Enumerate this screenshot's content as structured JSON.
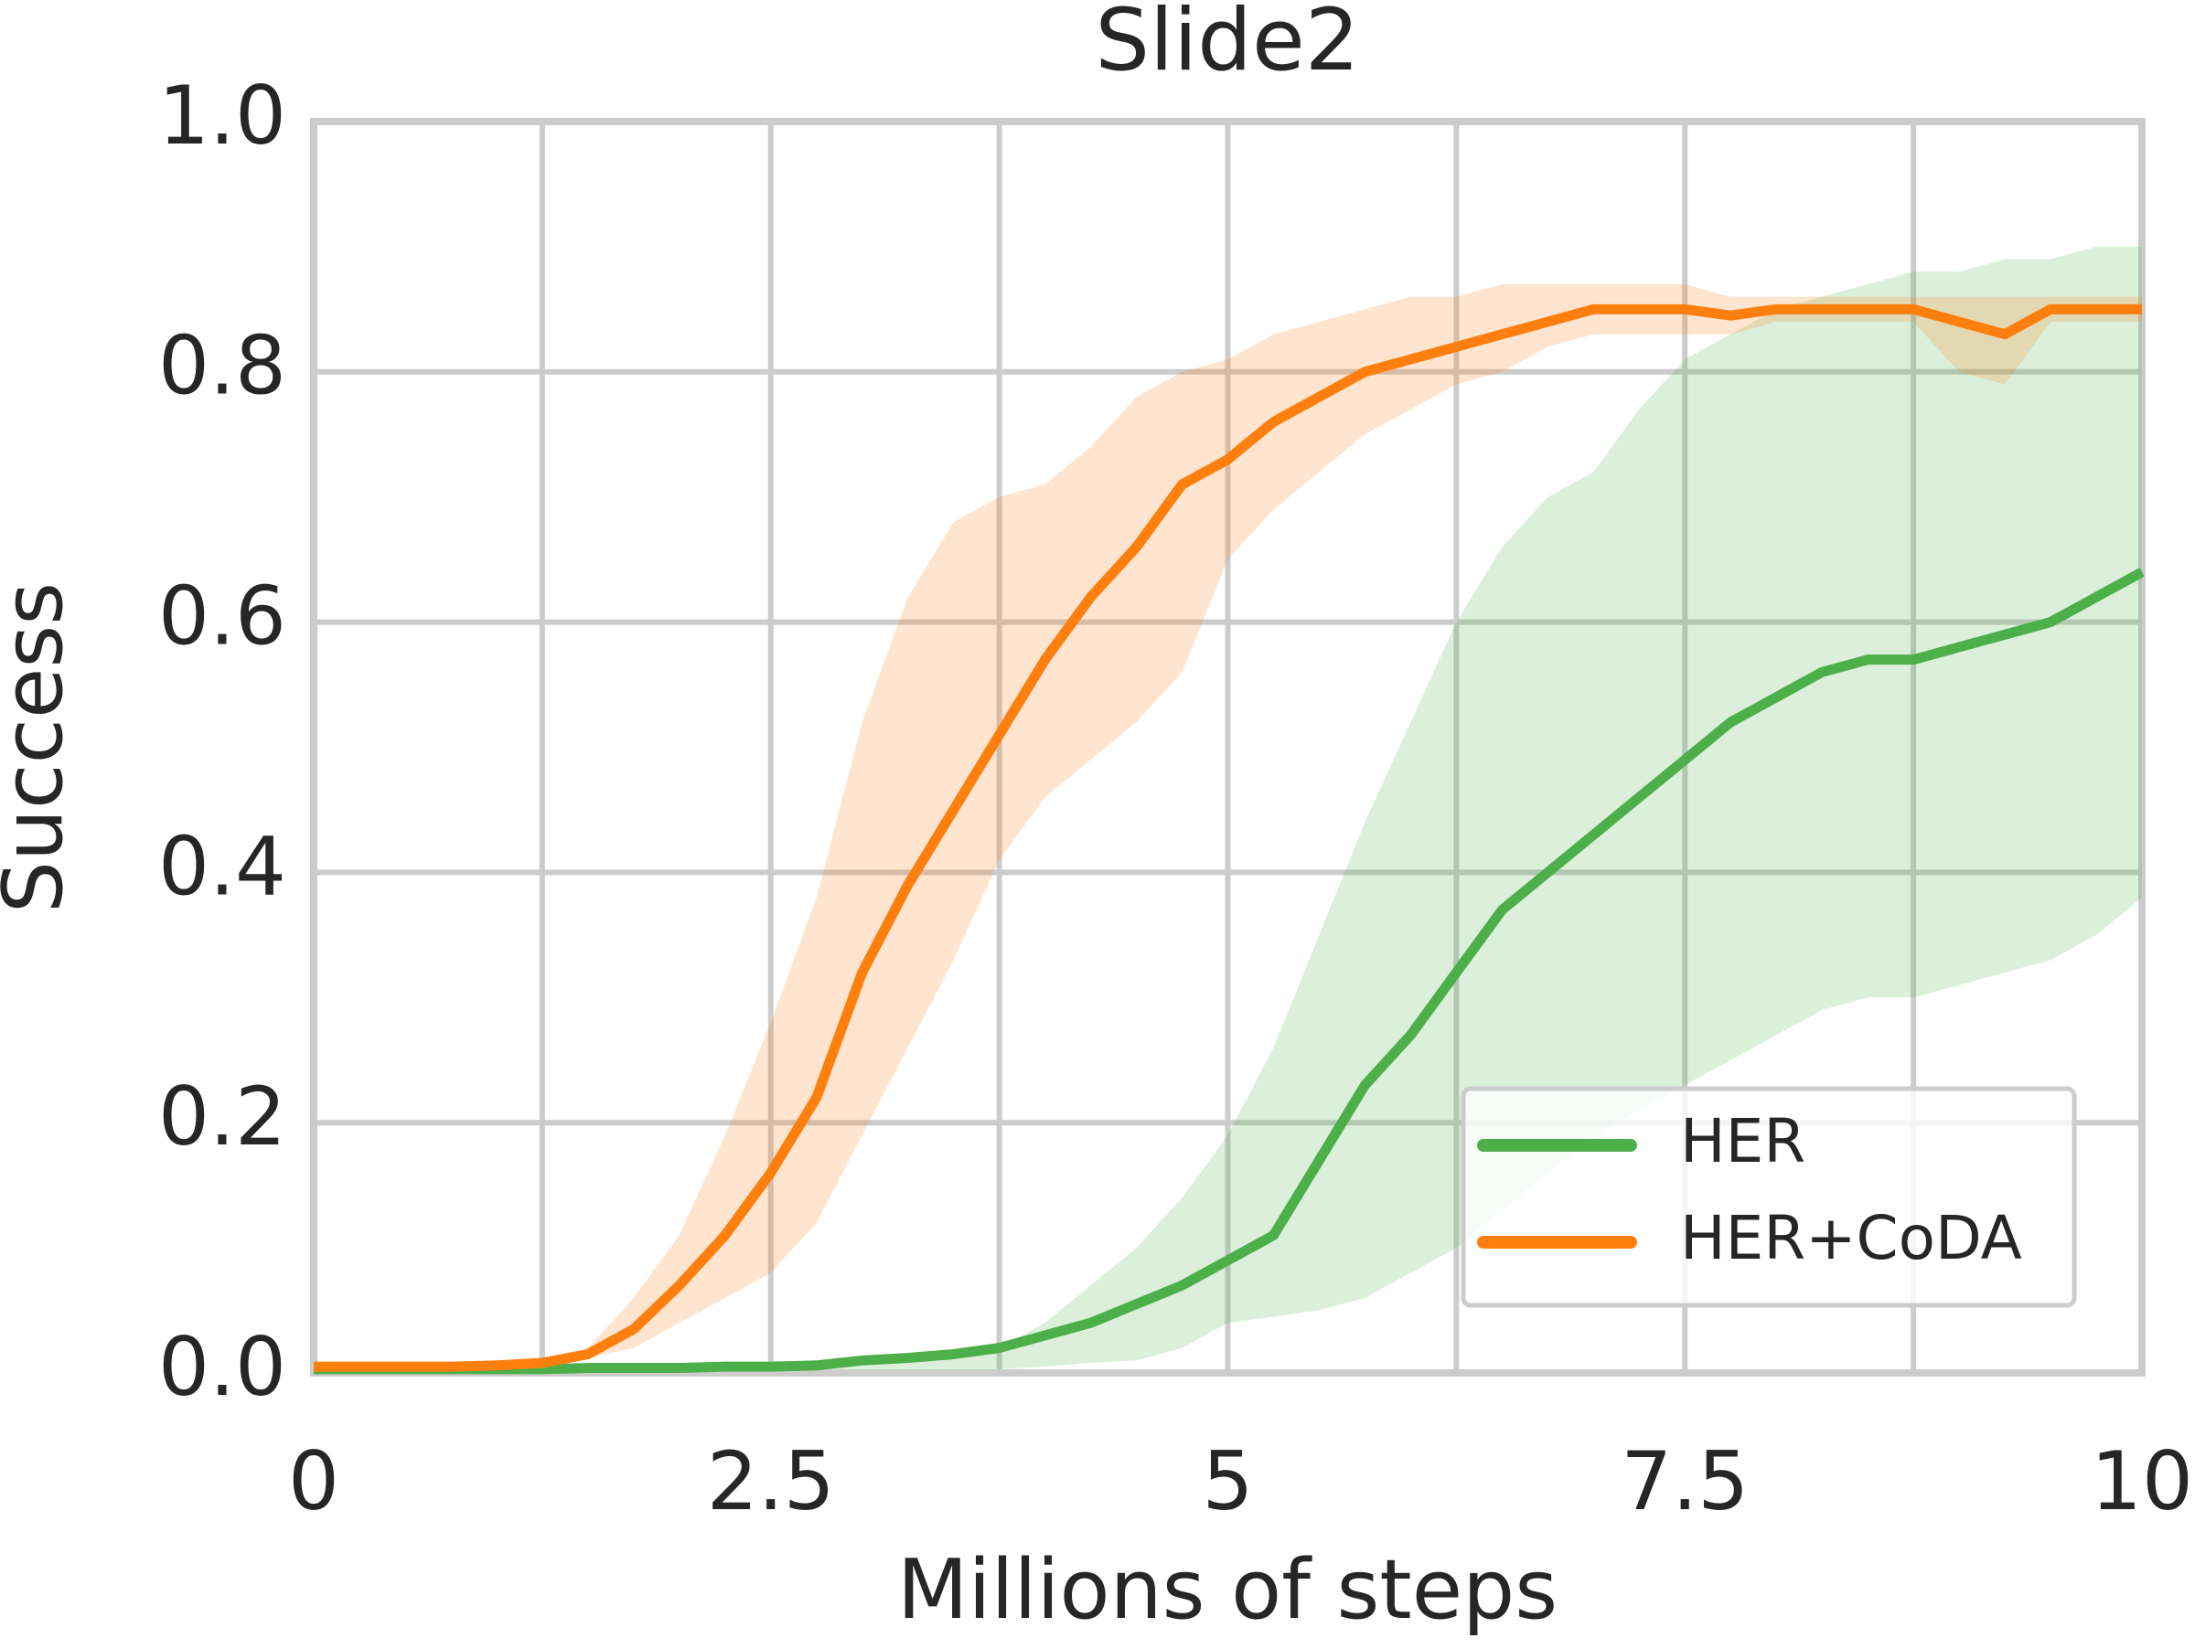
{
  "chart_data": {
    "type": "line",
    "title": "Slide2",
    "xlabel": "Millions of steps",
    "ylabel": "Success",
    "x": [
      0,
      0.25,
      0.5,
      0.75,
      1,
      1.25,
      1.5,
      1.75,
      2,
      2.25,
      2.5,
      2.75,
      3,
      3.25,
      3.5,
      3.75,
      4,
      4.25,
      4.5,
      4.75,
      5,
      5.25,
      5.5,
      5.75,
      6,
      6.25,
      6.5,
      6.75,
      7,
      7.25,
      7.5,
      7.75,
      8,
      8.25,
      8.5,
      8.75,
      9,
      9.25,
      9.5,
      9.75,
      10
    ],
    "series": [
      {
        "name": "HER",
        "color": "#4daf4a",
        "values": [
          0.003,
          0.003,
          0.003,
          0.003,
          0.003,
          0.003,
          0.004,
          0.004,
          0.004,
          0.005,
          0.005,
          0.006,
          0.01,
          0.012,
          0.015,
          0.02,
          0.03,
          0.04,
          0.055,
          0.07,
          0.09,
          0.11,
          0.17,
          0.23,
          0.27,
          0.32,
          0.37,
          0.4,
          0.43,
          0.46,
          0.49,
          0.52,
          0.54,
          0.56,
          0.57,
          0.57,
          0.58,
          0.59,
          0.6,
          0.62,
          0.64
        ],
        "lower": [
          0.003,
          0.003,
          0.003,
          0.003,
          0.003,
          0.003,
          0.003,
          0.003,
          0.003,
          0.003,
          0.003,
          0.003,
          0.003,
          0.003,
          0.003,
          0.003,
          0.005,
          0.008,
          0.01,
          0.02,
          0.04,
          0.045,
          0.05,
          0.06,
          0.08,
          0.1,
          0.13,
          0.16,
          0.19,
          0.21,
          0.23,
          0.25,
          0.27,
          0.29,
          0.3,
          0.3,
          0.31,
          0.32,
          0.33,
          0.35,
          0.38
        ],
        "upper": [
          0.003,
          0.003,
          0.003,
          0.003,
          0.003,
          0.003,
          0.005,
          0.005,
          0.006,
          0.007,
          0.008,
          0.01,
          0.013,
          0.015,
          0.018,
          0.02,
          0.04,
          0.07,
          0.1,
          0.14,
          0.19,
          0.26,
          0.35,
          0.44,
          0.52,
          0.6,
          0.66,
          0.7,
          0.72,
          0.77,
          0.81,
          0.83,
          0.85,
          0.86,
          0.87,
          0.88,
          0.88,
          0.89,
          0.89,
          0.9,
          0.9
        ]
      },
      {
        "name": "HER+CoDA",
        "color": "#ff7f0e",
        "values": [
          0.005,
          0.005,
          0.005,
          0.005,
          0.006,
          0.008,
          0.015,
          0.035,
          0.07,
          0.11,
          0.16,
          0.22,
          0.32,
          0.39,
          0.45,
          0.51,
          0.57,
          0.62,
          0.66,
          0.71,
          0.73,
          0.76,
          0.78,
          0.8,
          0.81,
          0.82,
          0.83,
          0.84,
          0.85,
          0.85,
          0.85,
          0.845,
          0.85,
          0.85,
          0.85,
          0.85,
          0.84,
          0.83,
          0.85,
          0.85,
          0.85
        ],
        "lower": [
          0.005,
          0.005,
          0.005,
          0.005,
          0.006,
          0.008,
          0.012,
          0.02,
          0.04,
          0.06,
          0.08,
          0.12,
          0.19,
          0.26,
          0.33,
          0.41,
          0.46,
          0.49,
          0.52,
          0.56,
          0.65,
          0.69,
          0.72,
          0.75,
          0.77,
          0.79,
          0.8,
          0.82,
          0.83,
          0.83,
          0.83,
          0.83,
          0.84,
          0.84,
          0.84,
          0.84,
          0.8,
          0.79,
          0.84,
          0.84,
          0.84
        ],
        "upper": [
          0.005,
          0.005,
          0.005,
          0.005,
          0.006,
          0.008,
          0.02,
          0.06,
          0.11,
          0.19,
          0.28,
          0.38,
          0.52,
          0.62,
          0.68,
          0.7,
          0.71,
          0.74,
          0.78,
          0.8,
          0.81,
          0.83,
          0.84,
          0.85,
          0.86,
          0.86,
          0.87,
          0.87,
          0.87,
          0.87,
          0.87,
          0.86,
          0.86,
          0.86,
          0.86,
          0.86,
          0.86,
          0.86,
          0.86,
          0.86,
          0.86
        ]
      }
    ],
    "xlim": [
      0,
      10
    ],
    "ylim": [
      0,
      1
    ],
    "xticks": [
      {
        "value": 0,
        "label": "0"
      },
      2.5,
      5,
      7.5,
      10
    ],
    "xgrid_minor": [
      1.25,
      3.75,
      6.25,
      8.75
    ],
    "yticks": [
      {
        "value": 0,
        "label": "0.0"
      },
      0.2,
      0.4,
      0.6,
      0.8,
      {
        "value": 1,
        "label": "1.0"
      }
    ],
    "grid": true,
    "legend": "lower right"
  }
}
